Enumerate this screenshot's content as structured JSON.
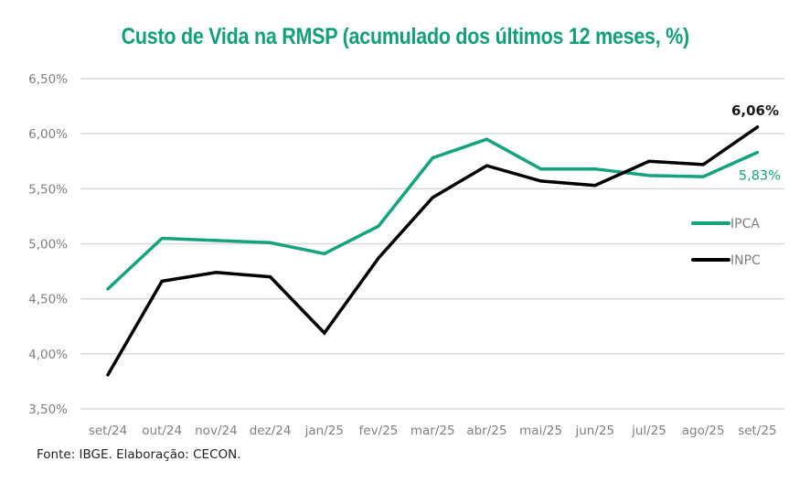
{
  "chart_data": {
    "type": "line",
    "title": "Custo de Vida na RMSP (acumulado dos últimos 12 meses, %)",
    "xlabel": "",
    "ylabel": "",
    "categories": [
      "set/24",
      "out/24",
      "nov/24",
      "dez/24",
      "jan/25",
      "fev/25",
      "mar/25",
      "abr/25",
      "mai/25",
      "jun/25",
      "jul/25",
      "ago/25",
      "set/25"
    ],
    "ylim": [
      3.5,
      6.5
    ],
    "yticks": [
      3.5,
      4.0,
      4.5,
      5.0,
      5.5,
      6.0,
      6.5
    ],
    "ytick_labels": [
      "3,50%",
      "4,00%",
      "4,50%",
      "5,00%",
      "5,50%",
      "6,00%",
      "6,50%"
    ],
    "grid": true,
    "legend_position": "right",
    "series": [
      {
        "name": "IPCA",
        "color": "#14a37f",
        "values": [
          4.59,
          5.05,
          5.03,
          5.01,
          4.91,
          5.16,
          5.78,
          5.95,
          5.68,
          5.68,
          5.62,
          5.61,
          5.83
        ],
        "end_label": "5,83%"
      },
      {
        "name": "INPC",
        "color": "#000000",
        "values": [
          3.81,
          4.66,
          4.74,
          4.7,
          4.19,
          4.87,
          5.42,
          5.71,
          5.57,
          5.53,
          5.75,
          5.72,
          6.06
        ],
        "end_label": "6,06%"
      }
    ]
  },
  "source": "Fonte: IBGE. Elaboração: CECON."
}
